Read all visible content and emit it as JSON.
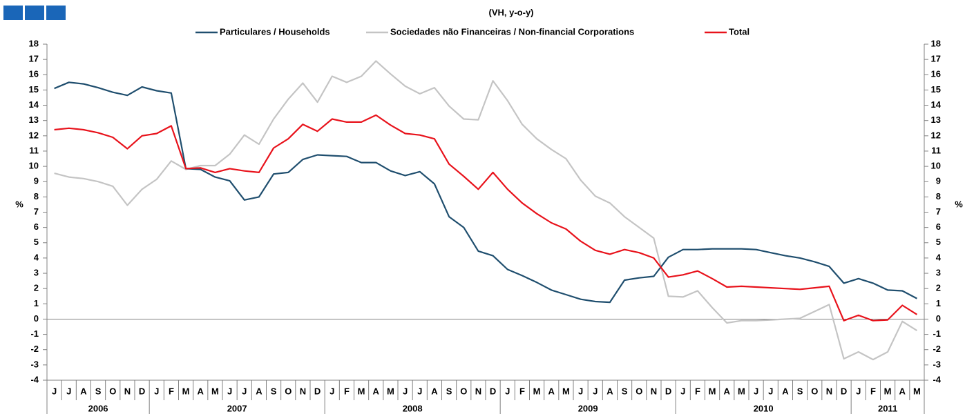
{
  "chart_data": {
    "type": "line",
    "title": "(VH, y-o-y)",
    "y_label": "%",
    "y2_label": "%",
    "categories": [
      "J",
      "J",
      "A",
      "S",
      "O",
      "N",
      "D",
      "J",
      "F",
      "M",
      "A",
      "M",
      "J",
      "J",
      "A",
      "S",
      "O",
      "N",
      "D",
      "J",
      "F",
      "M",
      "A",
      "M",
      "J",
      "J",
      "A",
      "S",
      "O",
      "N",
      "D",
      "J",
      "F",
      "M",
      "A",
      "M",
      "J",
      "J",
      "A",
      "S",
      "O",
      "N",
      "D",
      "J",
      "F",
      "M",
      "A",
      "M",
      "J",
      "J",
      "A",
      "S",
      "O",
      "N",
      "D",
      "J",
      "F",
      "M",
      "A",
      "M"
    ],
    "category_groups": [
      "2006",
      "2007",
      "2008",
      "2009",
      "2010",
      "2011"
    ],
    "ylim": [
      -4,
      18
    ],
    "yticks": [
      -4,
      -3,
      -2,
      -1,
      0,
      1,
      2,
      3,
      4,
      5,
      6,
      7,
      8,
      9,
      10,
      11,
      12,
      13,
      14,
      15,
      16,
      17,
      18
    ],
    "y2lim": [
      -4,
      18
    ],
    "y2ticks": [
      -4,
      -3,
      -2,
      -1,
      0,
      1,
      2,
      3,
      4,
      5,
      6,
      7,
      8,
      9,
      10,
      11,
      12,
      13,
      14,
      15,
      16,
      17,
      18
    ],
    "series": [
      {
        "name": "Particulares / Households",
        "color": "#1f4e6e",
        "values": [
          15.1,
          15.5,
          15.4,
          15.15,
          14.85,
          14.65,
          15.2,
          14.95,
          14.8,
          9.85,
          9.8,
          9.3,
          9.05,
          7.8,
          8.0,
          9.5,
          9.6,
          10.45,
          10.75,
          10.7,
          10.65,
          10.25,
          10.25,
          9.7,
          9.4,
          9.65,
          8.85,
          6.7,
          6.0,
          4.45,
          4.15,
          3.25,
          2.85,
          2.4,
          1.9,
          1.6,
          1.3,
          1.15,
          1.1,
          2.55,
          2.7,
          2.8,
          4.05,
          4.55,
          4.55,
          4.6,
          4.6,
          4.6,
          4.55,
          4.35,
          4.15,
          4.0,
          3.75,
          3.45,
          2.35,
          2.65,
          2.35,
          1.9,
          1.85,
          1.35
        ]
      },
      {
        "name": "Sociedades não Financeiras / Non-financial Corporations",
        "color": "#c4c4c4",
        "values": [
          9.55,
          9.3,
          9.2,
          9.0,
          8.7,
          7.45,
          8.5,
          9.15,
          10.35,
          9.8,
          10.05,
          10.05,
          10.8,
          12.05,
          11.45,
          13.1,
          14.4,
          15.45,
          14.2,
          15.9,
          15.5,
          15.9,
          16.9,
          16.05,
          15.25,
          14.75,
          15.15,
          13.95,
          13.1,
          13.05,
          15.6,
          14.3,
          12.75,
          11.8,
          11.1,
          10.5,
          9.1,
          8.05,
          7.6,
          6.7,
          6.0,
          5.3,
          1.5,
          1.45,
          1.85,
          0.75,
          -0.25,
          -0.1,
          -0.1,
          -0.05,
          0.0,
          0.05,
          0.5,
          0.95,
          -2.6,
          -2.15,
          -2.65,
          -2.15,
          -0.15,
          -0.75
        ]
      },
      {
        "name": "Total",
        "color": "#e8121b",
        "values": [
          12.4,
          12.5,
          12.4,
          12.2,
          11.9,
          11.15,
          12.0,
          12.15,
          12.65,
          9.85,
          9.9,
          9.6,
          9.85,
          9.7,
          9.6,
          11.2,
          11.8,
          12.75,
          12.3,
          13.1,
          12.9,
          12.9,
          13.35,
          12.7,
          12.15,
          12.05,
          11.8,
          10.15,
          9.35,
          8.5,
          9.6,
          8.5,
          7.6,
          6.9,
          6.3,
          5.9,
          5.1,
          4.5,
          4.25,
          4.55,
          4.35,
          4.0,
          2.75,
          2.9,
          3.15,
          2.65,
          2.1,
          2.15,
          2.1,
          2.05,
          2.0,
          1.95,
          2.05,
          2.15,
          -0.1,
          0.25,
          -0.1,
          -0.05,
          0.9,
          0.3
        ]
      }
    ]
  }
}
